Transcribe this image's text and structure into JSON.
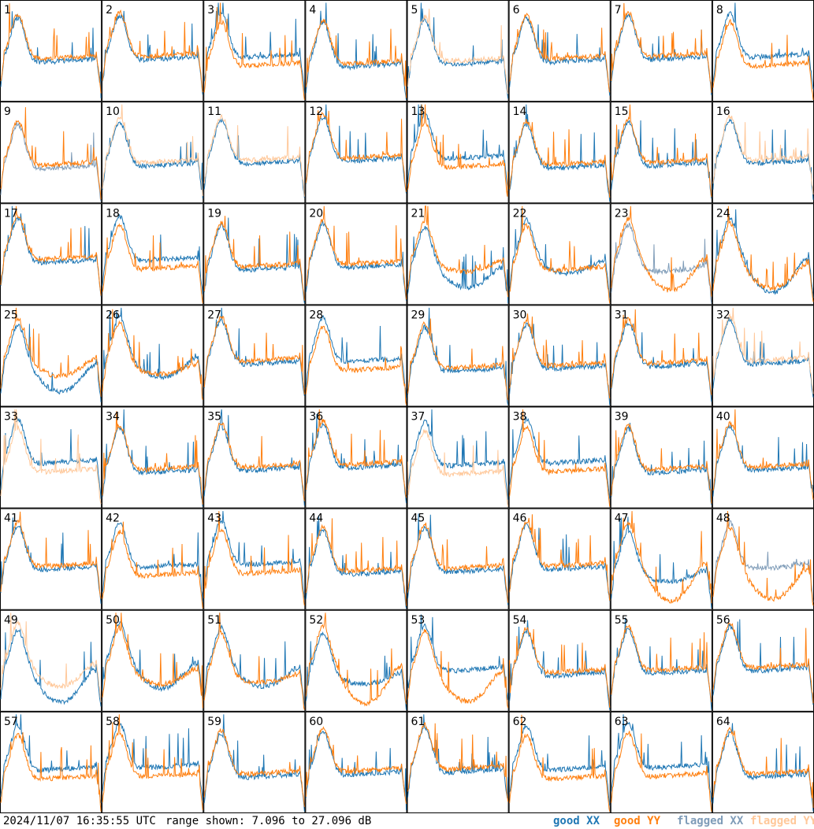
{
  "chart_data": {
    "type": "line",
    "grid": "8x8",
    "panel_labels": [
      "1",
      "2",
      "3",
      "4",
      "5",
      "6",
      "7",
      "8",
      "9",
      "10",
      "11",
      "12",
      "13",
      "14",
      "15",
      "16",
      "17",
      "18",
      "19",
      "20",
      "21",
      "22",
      "23",
      "24",
      "25",
      "26",
      "27",
      "28",
      "29",
      "30",
      "31",
      "32",
      "33",
      "34",
      "35",
      "36",
      "37",
      "38",
      "39",
      "40",
      "41",
      "42",
      "43",
      "44",
      "45",
      "46",
      "47",
      "48",
      "49",
      "50",
      "51",
      "52",
      "53",
      "54",
      "55",
      "56",
      "57",
      "58",
      "59",
      "60",
      "61",
      "62",
      "63",
      "64"
    ],
    "ylim": [
      7.096,
      27.096
    ],
    "yunit": "dB",
    "legend": [
      "good XX",
      "good YY",
      "flagged XX",
      "flagged YY"
    ],
    "legend_position": "bottom-right",
    "flagged_panels": {
      "xx": [
        9,
        23,
        48
      ],
      "yy": [
        5,
        10,
        11,
        16,
        32,
        33,
        37,
        49
      ]
    },
    "colors": {
      "good_xx": "#1f77b4",
      "good_yy": "#ff7f0e",
      "flagged_xx": "#7f9cb8",
      "flagged_yy": "#ffc89a"
    }
  },
  "footer": {
    "timestamp": "2024/11/07 16:35:55 UTC",
    "range": "range shown: 7.096 to 27.096 dB",
    "legend": {
      "good_xx": "good XX",
      "good_yy": "good YY",
      "flagged_xx": "flagged XX",
      "flagged_yy": "flagged YY"
    }
  }
}
